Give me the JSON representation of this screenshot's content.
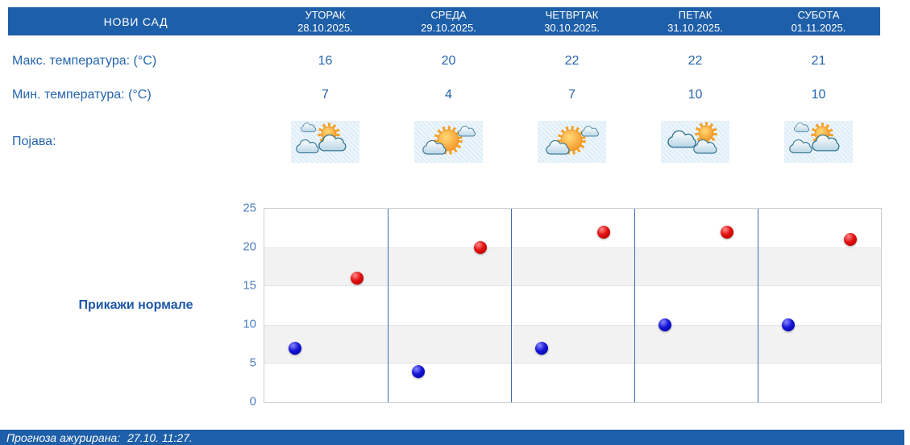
{
  "header": {
    "location": "НОВИ САД",
    "days": [
      {
        "name": "УТОРАК",
        "date": "28.10.2025."
      },
      {
        "name": "СРЕДА",
        "date": "29.10.2025."
      },
      {
        "name": "ЧЕТВРТАК",
        "date": "30.10.2025."
      },
      {
        "name": "ПЕТАК",
        "date": "31.10.2025."
      },
      {
        "name": "СУБОТА",
        "date": "01.11.2025."
      }
    ]
  },
  "rows": {
    "max_label": "Макс. температура: (°C)",
    "min_label": "Мин. температура: (°C)",
    "phenomenon_label": "Појава:",
    "max_values": [
      16,
      20,
      22,
      22,
      21
    ],
    "min_values": [
      7,
      4,
      7,
      10,
      10
    ],
    "icons": [
      "sun-behind-clouds",
      "sun-with-clouds",
      "sun-with-clouds",
      "cloud-with-sun",
      "sun-behind-clouds"
    ]
  },
  "normals_button_label": "Прикажи нормале",
  "chart_data": {
    "type": "scatter",
    "categories": [
      "28.10.2025.",
      "29.10.2025.",
      "30.10.2025.",
      "31.10.2025.",
      "01.11.2025."
    ],
    "series": [
      {
        "name": "Макс. температура (°C)",
        "color": "#d40000",
        "values": [
          16,
          20,
          22,
          22,
          21
        ],
        "x_offset_in_day": 0.75
      },
      {
        "name": "Мин. температура (°C)",
        "color": "#1515cc",
        "values": [
          7,
          4,
          7,
          10,
          10
        ],
        "x_offset_in_day": 0.25
      }
    ],
    "ylim": [
      0,
      25
    ],
    "yticks": [
      0,
      5,
      10,
      15,
      20,
      25
    ],
    "gray_bands": [
      [
        5,
        10
      ],
      [
        15,
        20
      ]
    ],
    "day_separators": true,
    "legend": "none",
    "title": "",
    "xlabel": "",
    "ylabel": ""
  },
  "footer": {
    "updated_label": "Прогноза ажурирана:",
    "updated_value": "27.10. 11:27."
  },
  "colors": {
    "bar_blue": "#1e5fa9",
    "text_blue": "#2565af",
    "tick_blue": "#4d7ec0",
    "separator_blue": "#3b6db2",
    "band_gray": "#f2f2f2"
  }
}
